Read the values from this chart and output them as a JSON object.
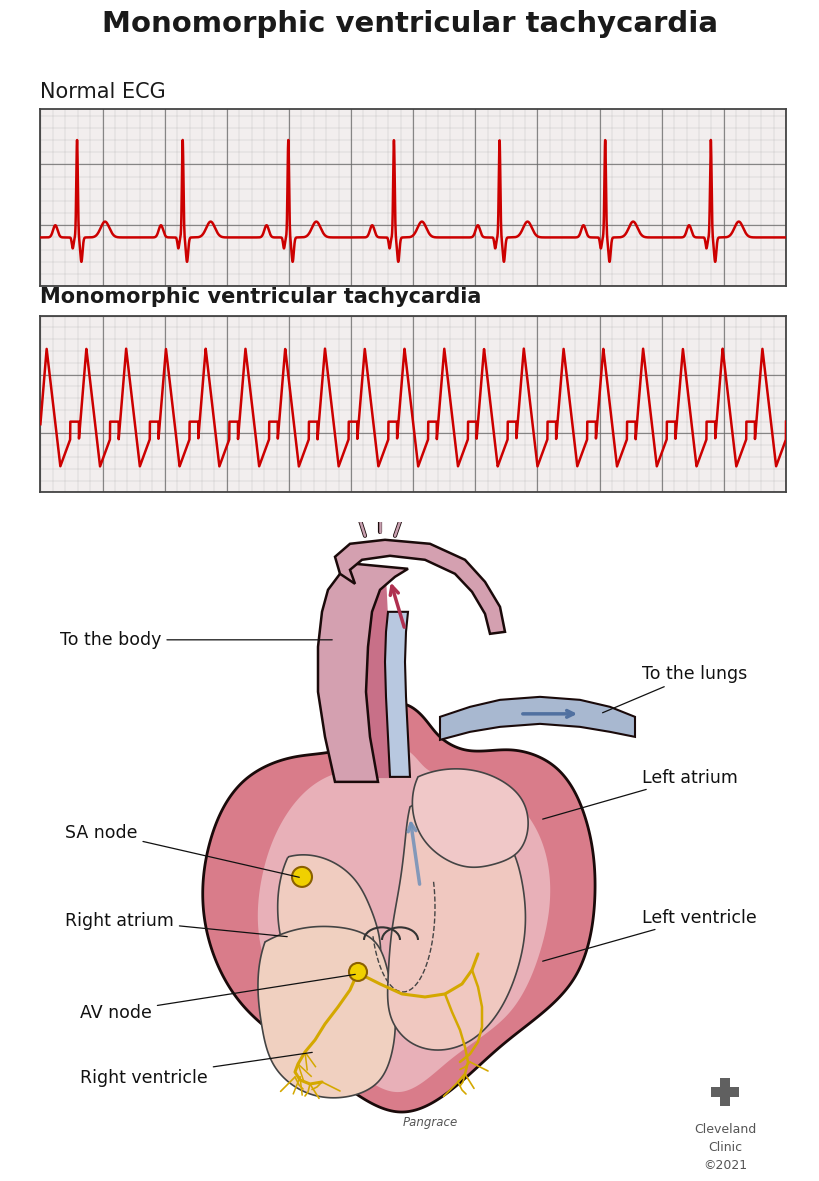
{
  "title": "Monomorphic ventricular tachycardia",
  "title_fontsize": 21,
  "bg_color": "#ffffff",
  "ecg_label1": "Normal ECG",
  "ecg_label2": "Monomorphic ventricular tachycardia",
  "ecg_label1_fontsize": 15,
  "ecg_label2_fontsize": 15,
  "ecg_grid_minor_color": "#aaaaaa",
  "ecg_grid_major_color": "#666666",
  "ecg_bg_color": "#f2eeee",
  "ecg_line_color": "#cc0000",
  "label_fontsize": 12.5,
  "cleveland_text": "Cleveland\nClinic\n©2021",
  "signature": "Pangrace"
}
